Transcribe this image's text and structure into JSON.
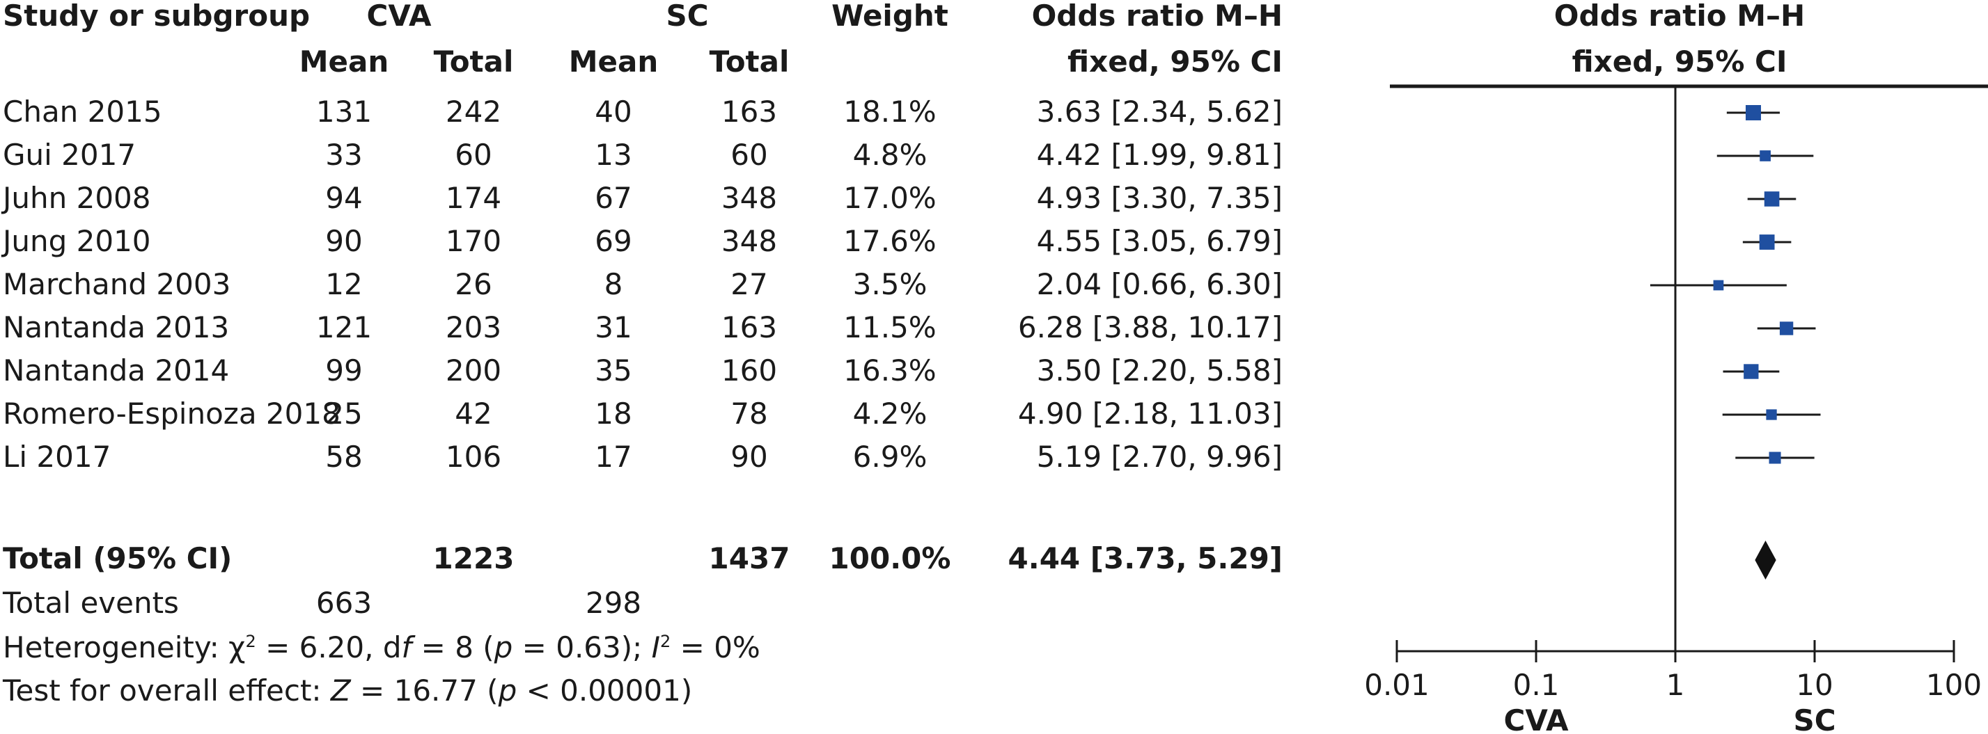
{
  "headers": {
    "study": "Study or subgroup",
    "cva": "CVA",
    "sc": "SC",
    "mean": "Mean",
    "total": "Total",
    "weight": "Weight",
    "or_line1": "Odds ratio M–H",
    "or_line2": "fixed, 95% CI",
    "plot_line1": "Odds ratio M–H",
    "plot_line2": "fixed, 95% CI"
  },
  "studies": [
    {
      "name": "Chan 2015",
      "cva_mean": "131",
      "cva_total": "242",
      "sc_mean": "40",
      "sc_total": "163",
      "weight": "18.1%",
      "ci_text": "3.63 [2.34, 5.62]"
    },
    {
      "name": "Gui 2017",
      "cva_mean": "33",
      "cva_total": "60",
      "sc_mean": "13",
      "sc_total": "60",
      "weight": "4.8%",
      "ci_text": "4.42 [1.99, 9.81]"
    },
    {
      "name": "Juhn 2008",
      "cva_mean": "94",
      "cva_total": "174",
      "sc_mean": "67",
      "sc_total": "348",
      "weight": "17.0%",
      "ci_text": "4.93 [3.30, 7.35]"
    },
    {
      "name": "Jung 2010",
      "cva_mean": "90",
      "cva_total": "170",
      "sc_mean": "69",
      "sc_total": "348",
      "weight": "17.6%",
      "ci_text": "4.55 [3.05, 6.79]"
    },
    {
      "name": "Marchand 2003",
      "cva_mean": "12",
      "cva_total": "26",
      "sc_mean": "8",
      "sc_total": "27",
      "weight": "3.5%",
      "ci_text": "2.04 [0.66, 6.30]"
    },
    {
      "name": "Nantanda 2013",
      "cva_mean": "121",
      "cva_total": "203",
      "sc_mean": "31",
      "sc_total": "163",
      "weight": "11.5%",
      "ci_text": "6.28 [3.88, 10.17]"
    },
    {
      "name": "Nantanda 2014",
      "cva_mean": "99",
      "cva_total": "200",
      "sc_mean": "35",
      "sc_total": "160",
      "weight": "16.3%",
      "ci_text": "3.50 [2.20, 5.58]"
    },
    {
      "name": "Romero-Espinoza 2018",
      "cva_mean": "25",
      "cva_total": "42",
      "sc_mean": "18",
      "sc_total": "78",
      "weight": "4.2%",
      "ci_text": "4.90 [2.18, 11.03]"
    },
    {
      "name": "Li 2017",
      "cva_mean": "58",
      "cva_total": "106",
      "sc_mean": "17",
      "sc_total": "90",
      "weight": "6.9%",
      "ci_text": "5.19 [2.70, 9.96]"
    }
  ],
  "total": {
    "label": "Total (95% CI)",
    "cva_total": "1223",
    "sc_total": "1437",
    "weight": "100.0%",
    "ci_text": "4.44 [3.73, 5.29]"
  },
  "events": {
    "label": "Total events",
    "cva": "663",
    "sc": "298"
  },
  "heterogeneity": {
    "prefix": "Heterogeneity: ",
    "chi": "χ",
    "chi_sup": "2",
    "mid1": " = 6.20, d",
    "df": "f",
    "mid2": " = 8 (",
    "p": "p",
    "mid3": " = 0.63); ",
    "i": "I",
    "i_sup": "2",
    "tail": " = 0%"
  },
  "overall": {
    "prefix": "Test for overall effect: ",
    "z": "Z",
    "mid1": " = 16.77 (",
    "p": "p",
    "tail": " < 0.00001)"
  },
  "colors": {
    "marker": "#1f4fa0",
    "line": "#1a1a1a",
    "text": "#1a1a1a"
  },
  "chart_data": {
    "type": "forest",
    "scale": "log",
    "xlim": [
      0.01,
      100
    ],
    "xticks": [
      "0.01",
      "0.1",
      "1",
      "10",
      "100"
    ],
    "xtick_values": [
      0.01,
      0.1,
      1,
      10,
      100
    ],
    "reference_line": 1,
    "xlabels_below": [
      "CVA",
      "SC"
    ],
    "studies": [
      {
        "name": "Chan 2015",
        "or": 3.63,
        "lower": 2.34,
        "upper": 5.62,
        "weight": 18.1
      },
      {
        "name": "Gui 2017",
        "or": 4.42,
        "lower": 1.99,
        "upper": 9.81,
        "weight": 4.8
      },
      {
        "name": "Juhn 2008",
        "or": 4.93,
        "lower": 3.3,
        "upper": 7.35,
        "weight": 17.0
      },
      {
        "name": "Jung 2010",
        "or": 4.55,
        "lower": 3.05,
        "upper": 6.79,
        "weight": 17.6
      },
      {
        "name": "Marchand 2003",
        "or": 2.04,
        "lower": 0.66,
        "upper": 6.3,
        "weight": 3.5
      },
      {
        "name": "Nantanda 2013",
        "or": 6.28,
        "lower": 3.88,
        "upper": 10.17,
        "weight": 11.5
      },
      {
        "name": "Nantanda 2014",
        "or": 3.5,
        "lower": 2.2,
        "upper": 5.58,
        "weight": 16.3
      },
      {
        "name": "Romero-Espinoza 2018",
        "or": 4.9,
        "lower": 2.18,
        "upper": 11.03,
        "weight": 4.2
      },
      {
        "name": "Li 2017",
        "or": 5.19,
        "lower": 2.7,
        "upper": 9.96,
        "weight": 6.9
      }
    ],
    "pooled": {
      "or": 4.44,
      "lower": 3.73,
      "upper": 5.29
    }
  }
}
